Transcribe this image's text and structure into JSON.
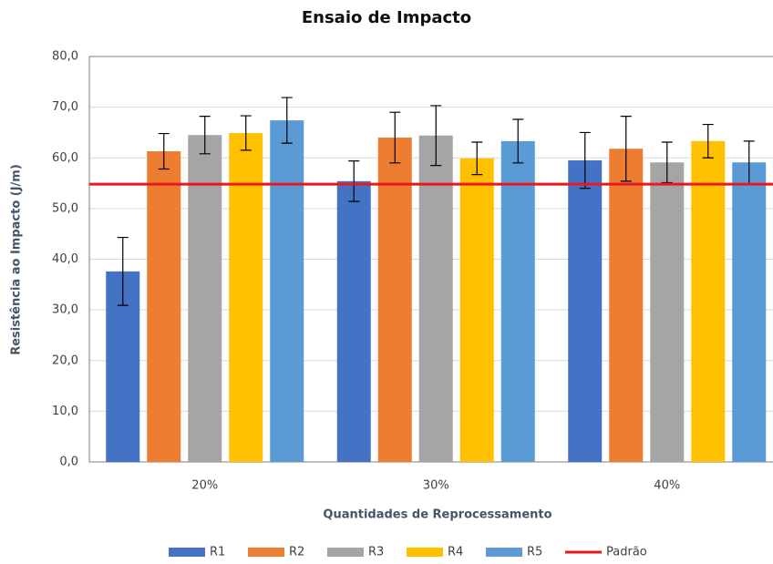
{
  "chart_data": {
    "type": "bar",
    "title": "Ensaio de Impacto",
    "x_label": "Quantidades de Reprocessamento",
    "y_label": "Resistência ao Impacto (J/m)",
    "categories": [
      "20%",
      "30%",
      "40%"
    ],
    "series": [
      {
        "name": "R1",
        "color": "#4472c4",
        "values": [
          37.6,
          55.4,
          59.5
        ],
        "errors": [
          6.7,
          4.0,
          5.5
        ]
      },
      {
        "name": "R2",
        "color": "#ed7d31",
        "values": [
          61.3,
          64.0,
          61.8
        ],
        "errors": [
          3.5,
          5.0,
          6.4
        ]
      },
      {
        "name": "R3",
        "color": "#a5a5a5",
        "values": [
          64.5,
          64.4,
          59.1
        ],
        "errors": [
          3.7,
          5.9,
          4.0
        ]
      },
      {
        "name": "R4",
        "color": "#ffc000",
        "values": [
          64.9,
          59.9,
          63.3
        ],
        "errors": [
          3.4,
          3.2,
          3.3
        ]
      },
      {
        "name": "R5",
        "color": "#5b9bd5",
        "values": [
          67.4,
          63.3,
          59.1
        ],
        "errors": [
          4.5,
          4.3,
          4.2
        ]
      }
    ],
    "reference": {
      "name": "Padrão",
      "value": 54.8,
      "color": "#e8191e"
    },
    "ylim": [
      0,
      80
    ],
    "yticks": [
      {
        "value": 0,
        "label": "0,0"
      },
      {
        "value": 10,
        "label": "10,0"
      },
      {
        "value": 20,
        "label": "20,0"
      },
      {
        "value": 30,
        "label": "30,0"
      },
      {
        "value": 40,
        "label": "40,0"
      },
      {
        "value": 50,
        "label": "50,0"
      },
      {
        "value": 60,
        "label": "60,0"
      },
      {
        "value": 70,
        "label": "70,0"
      },
      {
        "value": 80,
        "label": "80,0"
      }
    ],
    "grid": true
  }
}
